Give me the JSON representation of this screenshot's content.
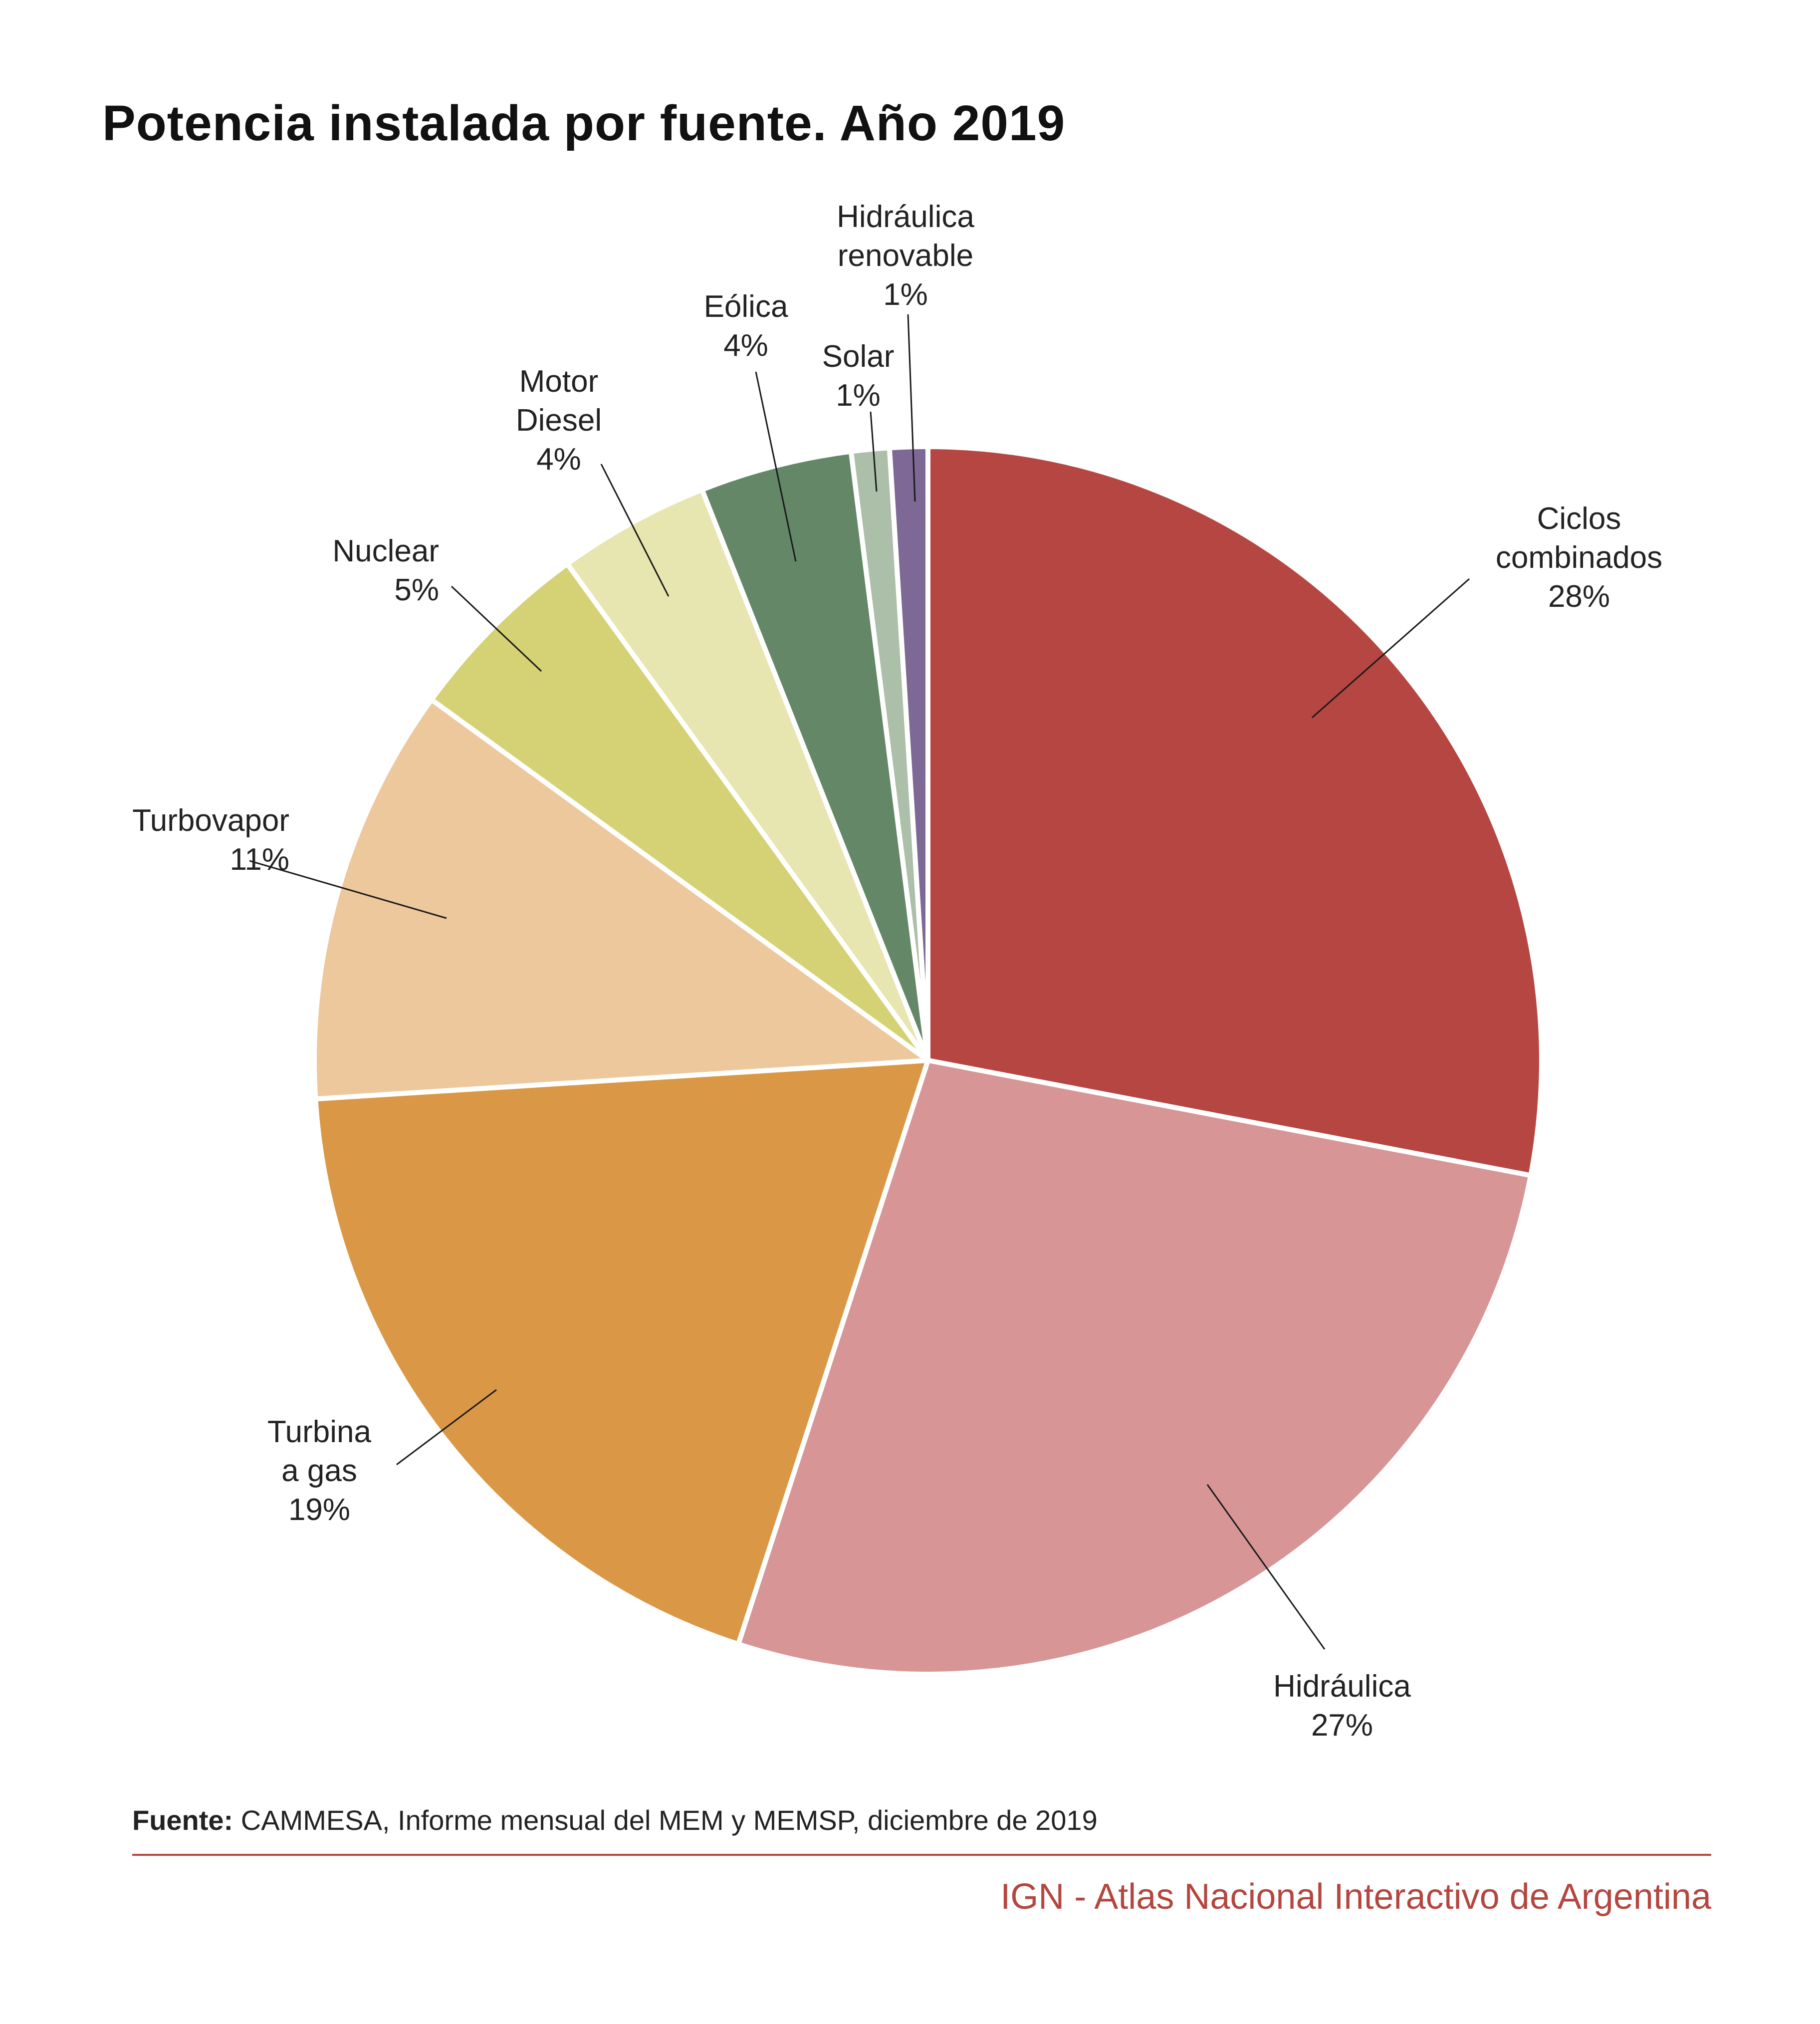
{
  "title": "Potencia instalada por fuente. Año 2019",
  "chart_data": {
    "type": "pie",
    "title": "Potencia instalada por fuente. Año 2019",
    "slices": [
      {
        "name": "Ciclos combinados",
        "lines": [
          "Ciclos",
          "combinados",
          "28%"
        ],
        "value": 28,
        "pct_label": "28%",
        "color": "#b54641"
      },
      {
        "name": "Hidráulica",
        "lines": [
          "Hidráulica",
          "27%"
        ],
        "value": 27,
        "pct_label": "27%",
        "color": "#d79596"
      },
      {
        "name": "Turbina a gas",
        "lines": [
          "Turbina",
          "a gas",
          "19%"
        ],
        "value": 19,
        "pct_label": "19%",
        "color": "#da9846"
      },
      {
        "name": "Turbovapor",
        "lines": [
          "Turbovapor",
          "11%"
        ],
        "value": 11,
        "pct_label": "11%",
        "color": "#ecc89c"
      },
      {
        "name": "Nuclear",
        "lines": [
          "Nuclear",
          "5%"
        ],
        "value": 5,
        "pct_label": "5%",
        "color": "#d5d275"
      },
      {
        "name": "Motor Diesel",
        "lines": [
          "Motor",
          "Diesel",
          "4%"
        ],
        "value": 4,
        "pct_label": "4%",
        "color": "#e7e5b0"
      },
      {
        "name": "Eólica",
        "lines": [
          "Eólica",
          "4%"
        ],
        "value": 4,
        "pct_label": "4%",
        "color": "#648767"
      },
      {
        "name": "Solar",
        "lines": [
          "Solar",
          "1%"
        ],
        "value": 1,
        "pct_label": "1%",
        "color": "#abbfa9"
      },
      {
        "name": "Hidráulica renovable",
        "lines": [
          "Hidráulica",
          "renovable",
          "1%"
        ],
        "value": 1,
        "pct_label": "1%",
        "color": "#7e6896"
      }
    ]
  },
  "footer": {
    "source_label": "Fuente:",
    "source_text": " CAMMESA, Informe mensual del MEM y MEMSP, diciembre de 2019",
    "credit": "IGN - Atlas Nacional Interactivo de Argentina",
    "accent_color": "#b5463f"
  }
}
